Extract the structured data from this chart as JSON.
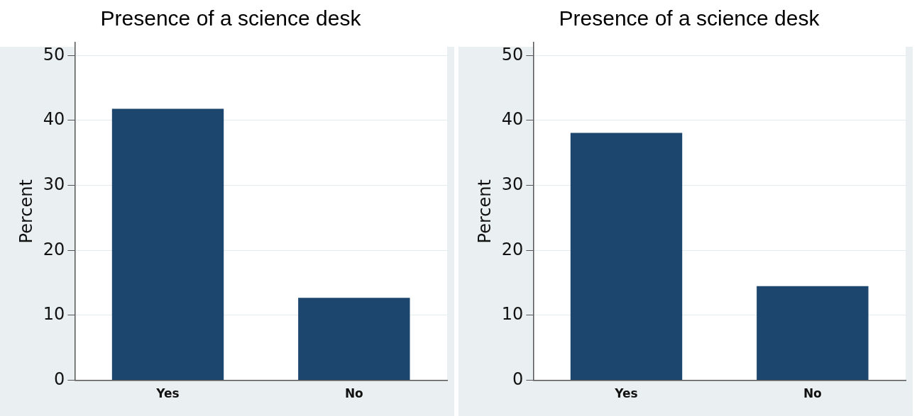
{
  "chart_data": [
    {
      "type": "bar",
      "title": "Presence of a science desk",
      "ylabel": "Percent",
      "categories": [
        "Yes",
        "No"
      ],
      "values": [
        41.8,
        12.7
      ],
      "color": "#1c466e",
      "ylim": [
        0,
        52
      ],
      "yticks": [
        0,
        10,
        20,
        30,
        40,
        50
      ],
      "grid": "y"
    },
    {
      "type": "bar",
      "title": "Presence of a science desk",
      "ylabel": "Percent",
      "categories": [
        "Yes",
        "No"
      ],
      "values": [
        38.1,
        14.5
      ],
      "color": "#1c466e",
      "ylim": [
        0,
        52
      ],
      "yticks": [
        0,
        10,
        20,
        30,
        40,
        50
      ],
      "grid": "y"
    }
  ]
}
